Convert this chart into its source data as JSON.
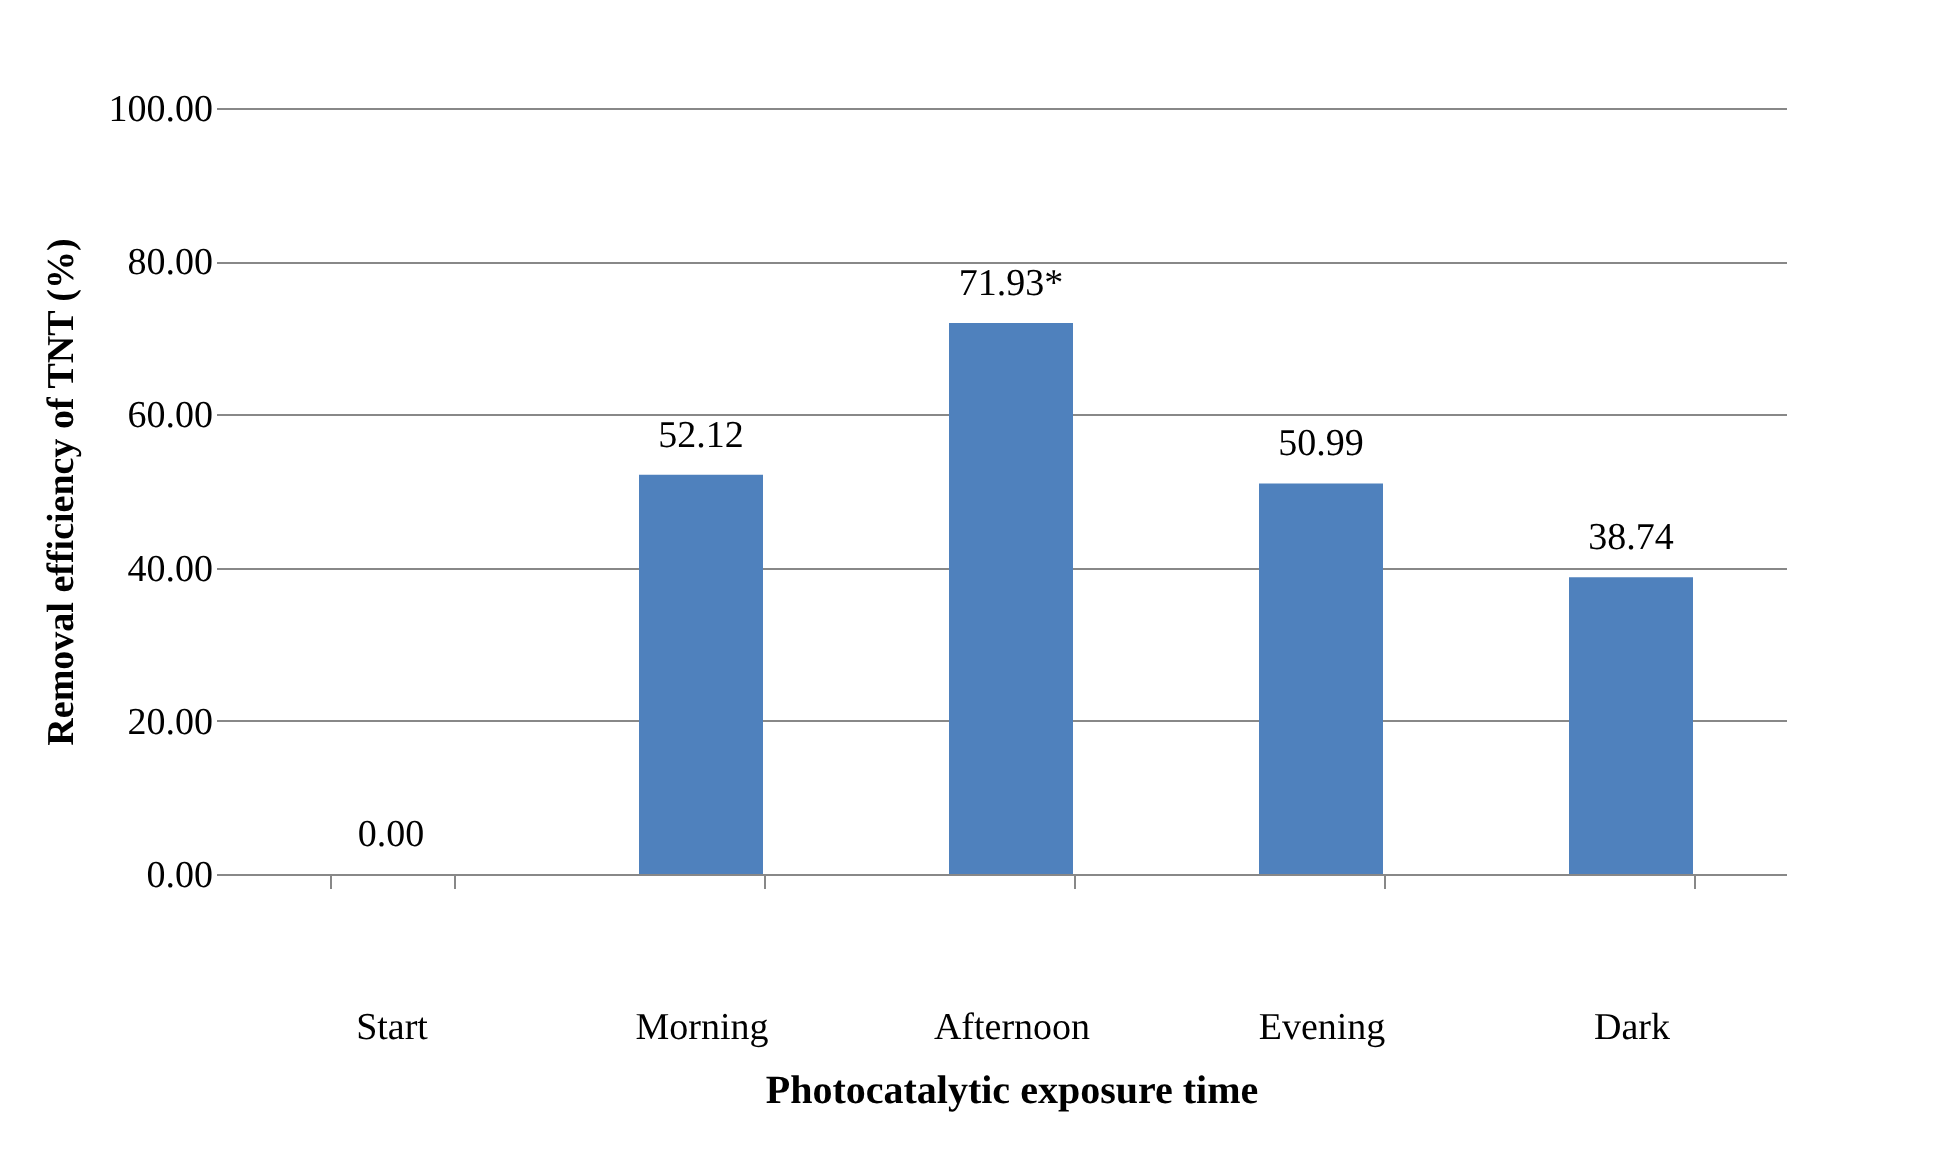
{
  "chart_data": {
    "type": "bar",
    "xlabel": "Photocatalytic exposure time",
    "ylabel": "Removal efficiency of TNT (%)",
    "categories": [
      "Start",
      "Morning",
      "Afternoon",
      "Evening",
      "Dark"
    ],
    "values": [
      0.0,
      52.12,
      71.93,
      50.99,
      38.74
    ],
    "value_labels": [
      "0.00",
      "52.12",
      "71.93*",
      "50.99",
      "38.74"
    ],
    "color": "#4f81bd",
    "ylim": [
      0,
      100
    ],
    "yticks": [
      {
        "value": 0,
        "label": "0.00"
      },
      {
        "value": 20,
        "label": "20.00"
      },
      {
        "value": 40,
        "label": "40.00"
      },
      {
        "value": 60,
        "label": "60.00"
      },
      {
        "value": 80,
        "label": "80.00"
      },
      {
        "value": 100,
        "label": "100.00"
      }
    ],
    "grid": "y"
  }
}
